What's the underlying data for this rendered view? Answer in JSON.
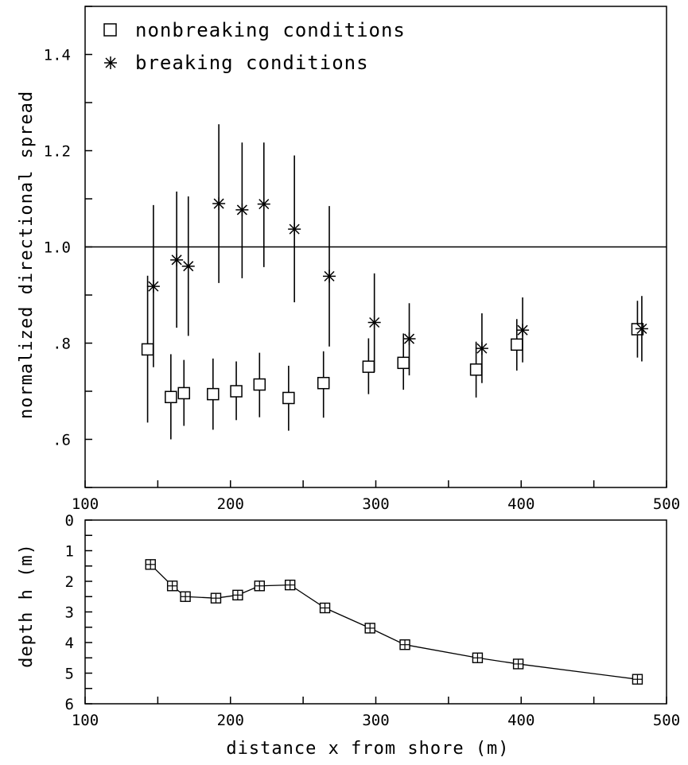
{
  "colors": {
    "ink": "#000000",
    "background": "#ffffff"
  },
  "chart_data": [
    {
      "type": "scatter",
      "ylabel": "normalized directional spread",
      "xlim": [
        100,
        500
      ],
      "ylim": [
        0.5,
        1.5
      ],
      "xticks": [
        100,
        200,
        300,
        400,
        500
      ],
      "xtick_labels": [
        "100",
        "200",
        "300",
        "400",
        "500"
      ],
      "yticks": [
        0.6,
        0.8,
        1.0,
        1.2,
        1.4
      ],
      "ytick_labels": [
        ".6",
        ".8",
        "1.0",
        "1.2",
        "1.4"
      ],
      "reference_line_y": 1.0,
      "grid": false,
      "legend_position": "top-left",
      "series": [
        {
          "name": "nonbreaking conditions",
          "marker": "open-square",
          "points": [
            {
              "x": 143,
              "y": 0.787,
              "err_low": 0.635,
              "err_high": 0.94
            },
            {
              "x": 159,
              "y": 0.688,
              "err_low": 0.6,
              "err_high": 0.777
            },
            {
              "x": 168,
              "y": 0.696,
              "err_low": 0.628,
              "err_high": 0.765
            },
            {
              "x": 188,
              "y": 0.694,
              "err_low": 0.62,
              "err_high": 0.768
            },
            {
              "x": 204,
              "y": 0.7,
              "err_low": 0.64,
              "err_high": 0.762
            },
            {
              "x": 220,
              "y": 0.714,
              "err_low": 0.646,
              "err_high": 0.78
            },
            {
              "x": 240,
              "y": 0.686,
              "err_low": 0.618,
              "err_high": 0.753
            },
            {
              "x": 264,
              "y": 0.717,
              "err_low": 0.645,
              "err_high": 0.783
            },
            {
              "x": 295,
              "y": 0.751,
              "err_low": 0.694,
              "err_high": 0.81
            },
            {
              "x": 319,
              "y": 0.759,
              "err_low": 0.703,
              "err_high": 0.82
            },
            {
              "x": 369,
              "y": 0.745,
              "err_low": 0.687,
              "err_high": 0.803
            },
            {
              "x": 397,
              "y": 0.797,
              "err_low": 0.743,
              "err_high": 0.85
            },
            {
              "x": 480,
              "y": 0.829,
              "err_low": 0.77,
              "err_high": 0.888
            }
          ]
        },
        {
          "name": "breaking conditions",
          "marker": "asterisk",
          "points": [
            {
              "x": 147,
              "y": 0.918,
              "err_low": 0.75,
              "err_high": 1.087
            },
            {
              "x": 163,
              "y": 0.973,
              "err_low": 0.832,
              "err_high": 1.115
            },
            {
              "x": 171,
              "y": 0.96,
              "err_low": 0.815,
              "err_high": 1.105
            },
            {
              "x": 192,
              "y": 1.09,
              "err_low": 0.925,
              "err_high": 1.255
            },
            {
              "x": 208,
              "y": 1.077,
              "err_low": 0.935,
              "err_high": 1.217
            },
            {
              "x": 223,
              "y": 1.089,
              "err_low": 0.958,
              "err_high": 1.217
            },
            {
              "x": 244,
              "y": 1.037,
              "err_low": 0.885,
              "err_high": 1.19
            },
            {
              "x": 268,
              "y": 0.939,
              "err_low": 0.793,
              "err_high": 1.085
            },
            {
              "x": 299,
              "y": 0.843,
              "err_low": 0.74,
              "err_high": 0.945
            },
            {
              "x": 323,
              "y": 0.809,
              "err_low": 0.733,
              "err_high": 0.883
            },
            {
              "x": 373,
              "y": 0.789,
              "err_low": 0.717,
              "err_high": 0.862
            },
            {
              "x": 401,
              "y": 0.827,
              "err_low": 0.76,
              "err_high": 0.895
            },
            {
              "x": 483,
              "y": 0.83,
              "err_low": 0.762,
              "err_high": 0.898
            }
          ]
        }
      ]
    },
    {
      "type": "line",
      "xlabel": "distance x from shore (m)",
      "ylabel": "depth h (m)",
      "xlim": [
        100,
        500
      ],
      "ylim": [
        6,
        0
      ],
      "xticks": [
        100,
        200,
        300,
        400,
        500
      ],
      "xtick_labels": [
        "100",
        "200",
        "300",
        "400",
        "500"
      ],
      "yticks": [
        0,
        1,
        2,
        3,
        4,
        5,
        6
      ],
      "ytick_labels": [
        "0",
        "1",
        "2",
        "3",
        "4",
        "5",
        "6"
      ],
      "grid": false,
      "marker": "crossed-square",
      "x": [
        145,
        160,
        169,
        190,
        205,
        220,
        241,
        265,
        296,
        320,
        370,
        398,
        480
      ],
      "y": [
        1.45,
        2.15,
        2.5,
        2.55,
        2.45,
        2.15,
        2.12,
        2.87,
        3.53,
        4.07,
        4.5,
        4.7,
        5.2
      ]
    }
  ]
}
